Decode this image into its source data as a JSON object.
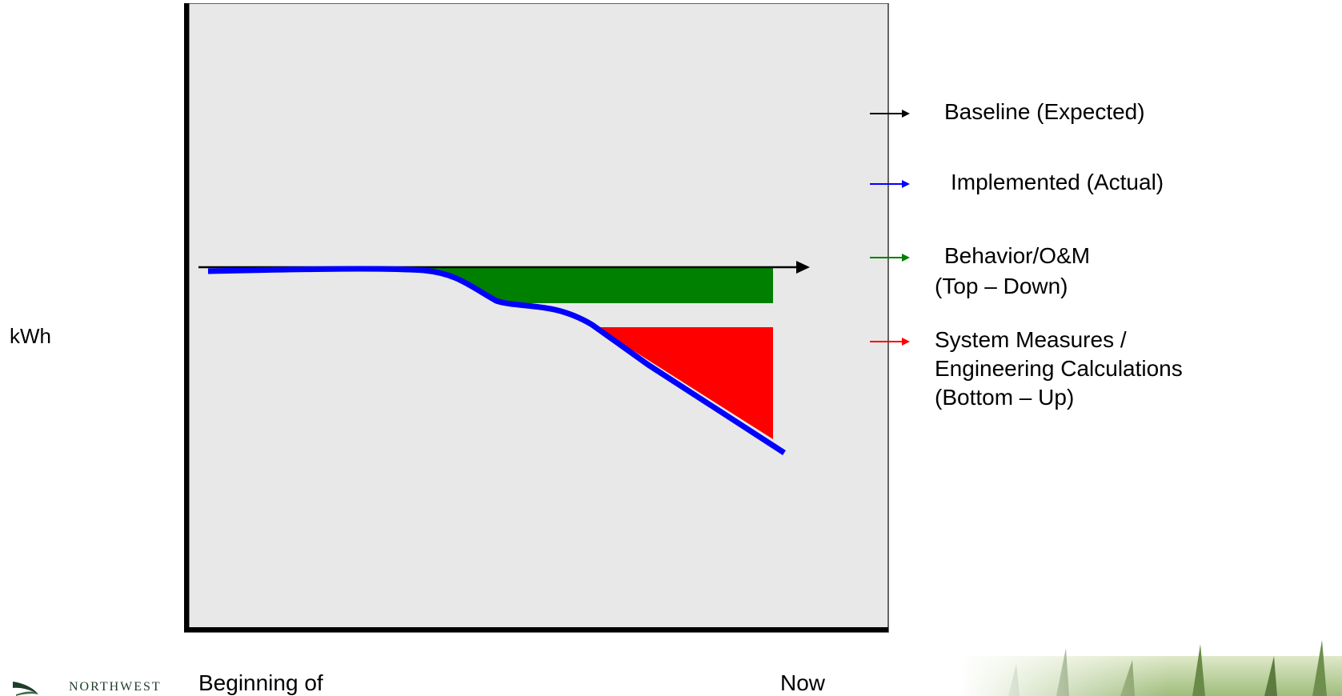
{
  "diagram": {
    "y_axis_label": "kWh",
    "x_axis_start_label": "Beginning of",
    "x_axis_end_label": "Now",
    "panel_background": "#e8e8e8",
    "colors": {
      "baseline": "#000000",
      "implemented": "#0000ff",
      "behavior": "#008000",
      "system": "#ff0000"
    }
  },
  "legend": {
    "items": [
      {
        "key": "baseline",
        "color": "#000000",
        "lines": [
          "Baseline (Expected)"
        ]
      },
      {
        "key": "implemented",
        "color": "#0000ff",
        "lines": [
          " Implemented (Actual)"
        ]
      },
      {
        "key": "behavior",
        "color": "#008000",
        "lines": [
          "Behavior/O&M",
          "(Top – Down)"
        ]
      },
      {
        "key": "system",
        "color": "#ff0000",
        "lines": [
          "System Measures /",
          "Engineering Calculations",
          "(Bottom – Up)"
        ]
      }
    ]
  },
  "logo": {
    "text": "NORTHWEST",
    "icon": "swoosh-logo-icon"
  }
}
